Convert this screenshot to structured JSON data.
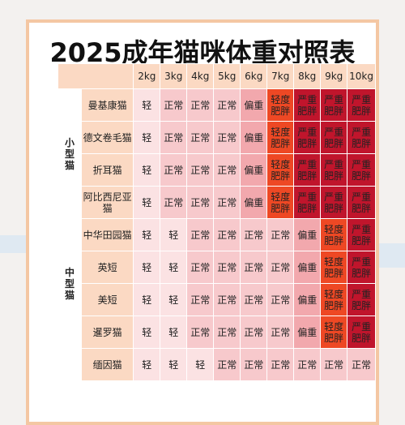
{
  "title": "2025成年猫咪体重对照表",
  "columns": [
    "2kg",
    "3kg",
    "4kg",
    "5kg",
    "6kg",
    "7kg",
    "8kg",
    "9kg",
    "10kg"
  ],
  "legend_colors": {
    "轻": "#fbe2e3",
    "正常": "#f7c9cc",
    "偏重": "#f2a8ad",
    "轻度肥胖": "#ee4824",
    "严重肥胖": "#c0152c"
  },
  "groups": [
    {
      "label": "小型猫",
      "rows": [
        {
          "breed": "曼基康猫",
          "cells": [
            "轻",
            "正常",
            "正常",
            "正常",
            "偏重",
            "轻度肥胖",
            "严重肥胖",
            "严重肥胖",
            "严重肥胖"
          ]
        },
        {
          "breed": "德文卷毛猫",
          "cells": [
            "轻",
            "正常",
            "正常",
            "正常",
            "偏重",
            "轻度肥胖",
            "严重肥胖",
            "严重肥胖",
            "严重肥胖"
          ]
        },
        {
          "breed": "折耳猫",
          "cells": [
            "轻",
            "正常",
            "正常",
            "正常",
            "偏重",
            "轻度肥胖",
            "严重肥胖",
            "严重肥胖",
            "严重肥胖"
          ]
        },
        {
          "breed": "阿比西尼亚猫",
          "cells": [
            "轻",
            "正常",
            "正常",
            "正常",
            "偏重",
            "轻度肥胖",
            "严重肥胖",
            "严重肥胖",
            "严重肥胖"
          ]
        }
      ]
    },
    {
      "label": "中型猫",
      "rows": [
        {
          "breed": "中华田园猫",
          "cells": [
            "轻",
            "轻",
            "正常",
            "正常",
            "正常",
            "正常",
            "偏重",
            "轻度肥胖",
            "严重肥胖"
          ]
        },
        {
          "breed": "英短",
          "cells": [
            "轻",
            "轻",
            "正常",
            "正常",
            "正常",
            "正常",
            "偏重",
            "轻度肥胖",
            "严重肥胖"
          ]
        },
        {
          "breed": "美短",
          "cells": [
            "轻",
            "轻",
            "正常",
            "正常",
            "正常",
            "正常",
            "偏重",
            "轻度肥胖",
            "严重肥胖"
          ]
        },
        {
          "breed": "暹罗猫",
          "cells": [
            "轻",
            "轻",
            "正常",
            "正常",
            "正常",
            "正常",
            "偏重",
            "轻度肥胖",
            "严重肥胖"
          ]
        }
      ]
    },
    {
      "label": "",
      "rows": [
        {
          "breed": "缅因猫",
          "cells": [
            "轻",
            "轻",
            "轻",
            "正常",
            "正常",
            "正常",
            "正常",
            "正常",
            "正常"
          ]
        }
      ]
    }
  ]
}
